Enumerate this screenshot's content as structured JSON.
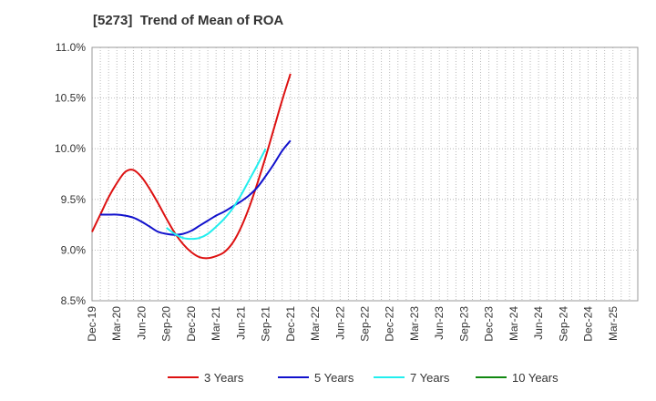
{
  "chart_data": {
    "type": "line",
    "title": "[5273]  Trend of Mean of ROA",
    "xlabel": "",
    "ylabel": "",
    "ylim": [
      8.5,
      11.0
    ],
    "y_ticks": [
      "8.5%",
      "9.0%",
      "9.5%",
      "10.0%",
      "10.5%",
      "11.0%"
    ],
    "y_tick_values": [
      8.5,
      9.0,
      9.5,
      10.0,
      10.5,
      11.0
    ],
    "x_ticks": [
      "Dec-19",
      "Mar-20",
      "Jun-20",
      "Sep-20",
      "Dec-20",
      "Mar-21",
      "Jun-21",
      "Sep-21",
      "Dec-21",
      "Mar-22",
      "Jun-22",
      "Sep-22",
      "Dec-22",
      "Mar-23",
      "Jun-23",
      "Sep-23",
      "Dec-23",
      "Mar-24",
      "Jun-24",
      "Sep-24",
      "Dec-24",
      "Mar-25"
    ],
    "grid": true,
    "legend_position": "bottom",
    "series": [
      {
        "name": "3 Years",
        "color": "#dd1111",
        "start_index": 0,
        "values": [
          9.18,
          9.35,
          9.52,
          9.66,
          9.77,
          9.79,
          9.72,
          9.6,
          9.46,
          9.31,
          9.17,
          9.06,
          8.98,
          8.93,
          8.92,
          8.94,
          8.98,
          9.07,
          9.22,
          9.42,
          9.66,
          9.92,
          10.2,
          10.48,
          10.74
        ]
      },
      {
        "name": "5 Years",
        "color": "#1111cc",
        "start_index": 1,
        "values": [
          9.35,
          9.35,
          9.35,
          9.34,
          9.32,
          9.28,
          9.23,
          9.18,
          9.16,
          9.15,
          9.16,
          9.19,
          9.24,
          9.29,
          9.34,
          9.38,
          9.43,
          9.48,
          9.54,
          9.62,
          9.73,
          9.85,
          9.98,
          10.08
        ]
      },
      {
        "name": "7 Years",
        "color": "#22eeee",
        "start_index": 9,
        "values": [
          9.22,
          9.16,
          9.12,
          9.11,
          9.12,
          9.16,
          9.23,
          9.31,
          9.41,
          9.54,
          9.69,
          9.84,
          10.0
        ]
      },
      {
        "name": "10 Years",
        "color": "#118811",
        "start_index": 0,
        "values": []
      }
    ]
  }
}
